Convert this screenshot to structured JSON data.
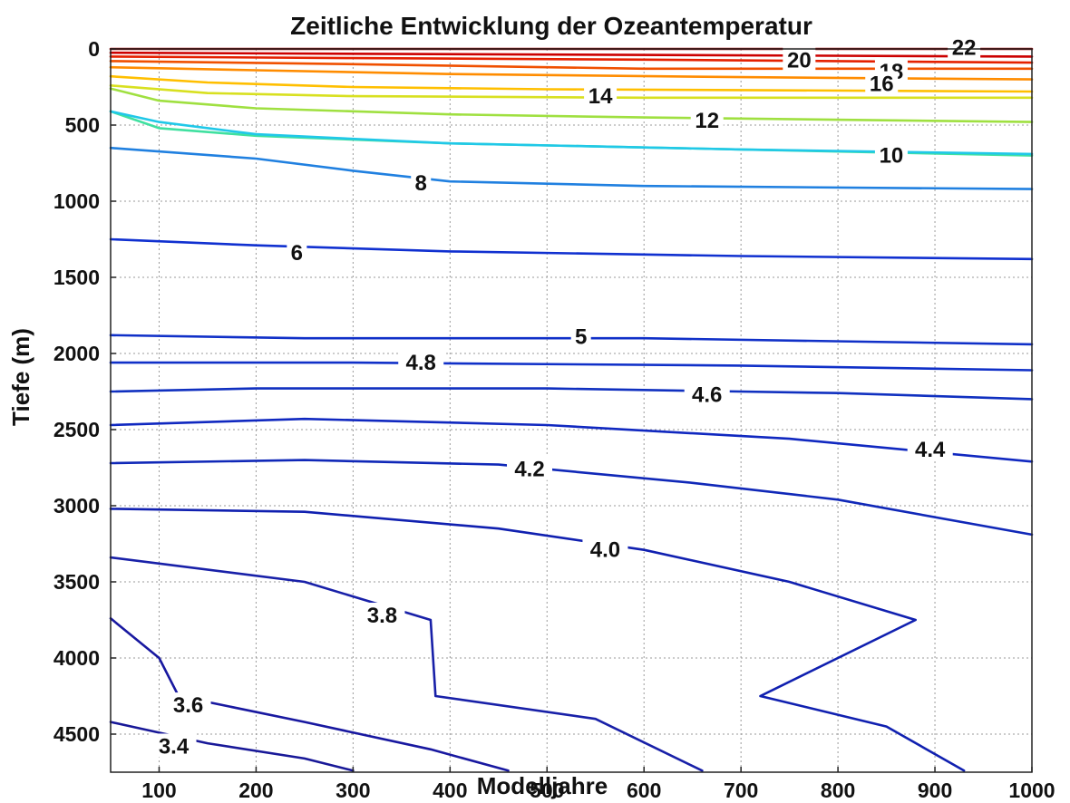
{
  "chart_data": {
    "type": "contour",
    "title": "Zeitliche Entwicklung der Ozeantemperatur",
    "xlabel": "Modelljahre",
    "ylabel": "Tiefe (m)",
    "xlim": [
      50,
      1000
    ],
    "ylim": [
      0,
      4750
    ],
    "y_reversed": true,
    "grid": true,
    "x_ticks": [
      100,
      200,
      300,
      400,
      500,
      600,
      700,
      800,
      900,
      1000
    ],
    "y_ticks": [
      0,
      500,
      1000,
      1500,
      2000,
      2500,
      3000,
      3500,
      4000,
      4500
    ],
    "contours": [
      {
        "level": "22",
        "color": "#a50000",
        "points": [
          [
            50,
            0
          ],
          [
            1000,
            0
          ]
        ],
        "label_at": [
          930,
          -10
        ]
      },
      {
        "level": "",
        "color": "#cc0000",
        "points": [
          [
            50,
            25
          ],
          [
            1000,
            50
          ]
        ],
        "label_at": null
      },
      {
        "level": "20",
        "color": "#e52000",
        "points": [
          [
            50,
            50
          ],
          [
            300,
            60
          ],
          [
            600,
            70
          ],
          [
            1000,
            90
          ]
        ],
        "label_at": [
          760,
          75
        ]
      },
      {
        "level": "",
        "color": "#f05000",
        "points": [
          [
            50,
            80
          ],
          [
            300,
            100
          ],
          [
            600,
            130
          ],
          [
            1000,
            130
          ]
        ],
        "label_at": null
      },
      {
        "level": "18",
        "color": "#ff8c00",
        "points": [
          [
            50,
            120
          ],
          [
            200,
            140
          ],
          [
            400,
            165
          ],
          [
            700,
            185
          ],
          [
            1000,
            200
          ]
        ],
        "label_at": [
          855,
          150
        ]
      },
      {
        "level": "16",
        "color": "#ffbf00",
        "points": [
          [
            50,
            180
          ],
          [
            150,
            220
          ],
          [
            300,
            250
          ],
          [
            500,
            265
          ],
          [
            700,
            270
          ],
          [
            1000,
            280
          ]
        ],
        "label_at": [
          845,
          230
        ]
      },
      {
        "level": "",
        "color": "#d8e020",
        "points": [
          [
            50,
            240
          ],
          [
            150,
            290
          ],
          [
            300,
            310
          ],
          [
            600,
            320
          ],
          [
            1000,
            320
          ]
        ],
        "label_at": null
      },
      {
        "level": "14",
        "color": "#9fe040",
        "points": [
          [
            50,
            260
          ],
          [
            100,
            340
          ],
          [
            200,
            390
          ],
          [
            400,
            430
          ],
          [
            600,
            450
          ],
          [
            1000,
            480
          ]
        ],
        "label_at": [
          555,
          310
        ]
      },
      {
        "level": "12",
        "color": "#40e0a0",
        "points": [
          [
            50,
            410
          ],
          [
            100,
            520
          ],
          [
            200,
            570
          ],
          [
            400,
            620
          ],
          [
            700,
            660
          ],
          [
            1000,
            700
          ]
        ],
        "label_at": [
          665,
          470
        ]
      },
      {
        "level": "10",
        "color": "#20c8e8",
        "points": [
          [
            50,
            410
          ],
          [
            100,
            480
          ],
          [
            200,
            560
          ],
          [
            400,
            620
          ],
          [
            700,
            660
          ],
          [
            1000,
            690
          ]
        ],
        "label_at": [
          855,
          700
        ]
      },
      {
        "level": "8",
        "color": "#2080e0",
        "points": [
          [
            50,
            650
          ],
          [
            200,
            720
          ],
          [
            300,
            800
          ],
          [
            400,
            870
          ],
          [
            600,
            900
          ],
          [
            1000,
            920
          ]
        ],
        "label_at": [
          370,
          880
        ]
      },
      {
        "level": "6",
        "color": "#1030d0",
        "points": [
          [
            50,
            1250
          ],
          [
            200,
            1290
          ],
          [
            400,
            1330
          ],
          [
            700,
            1360
          ],
          [
            1000,
            1380
          ]
        ],
        "label_at": [
          242,
          1340
        ]
      },
      {
        "level": "5",
        "color": "#1030c8",
        "points": [
          [
            50,
            1880
          ],
          [
            250,
            1900
          ],
          [
            600,
            1900
          ],
          [
            1000,
            1940
          ]
        ],
        "label_at": [
          535,
          1890
        ]
      },
      {
        "level": "4.8",
        "color": "#1030c8",
        "points": [
          [
            50,
            2060
          ],
          [
            300,
            2060
          ],
          [
            700,
            2080
          ],
          [
            1000,
            2110
          ]
        ],
        "label_at": [
          370,
          2060
        ]
      },
      {
        "level": "4.6",
        "color": "#1030c0",
        "points": [
          [
            50,
            2250
          ],
          [
            200,
            2230
          ],
          [
            500,
            2230
          ],
          [
            800,
            2260
          ],
          [
            1000,
            2300
          ]
        ],
        "label_at": [
          665,
          2270
        ]
      },
      {
        "level": "4.4",
        "color": "#1028c0",
        "points": [
          [
            50,
            2470
          ],
          [
            250,
            2430
          ],
          [
            500,
            2470
          ],
          [
            750,
            2560
          ],
          [
            1000,
            2710
          ]
        ],
        "label_at": [
          895,
          2630
        ]
      },
      {
        "level": "4.2",
        "color": "#1028b8",
        "points": [
          [
            50,
            2720
          ],
          [
            250,
            2700
          ],
          [
            450,
            2730
          ],
          [
            650,
            2850
          ],
          [
            800,
            2960
          ],
          [
            1000,
            3190
          ]
        ],
        "label_at": [
          482,
          2760
        ]
      },
      {
        "level": "4.0",
        "color": "#1020b0",
        "points": [
          [
            50,
            3020
          ],
          [
            250,
            3040
          ],
          [
            450,
            3150
          ],
          [
            600,
            3290
          ],
          [
            750,
            3500
          ],
          [
            880,
            3750
          ],
          [
            720,
            4250
          ],
          [
            850,
            4450
          ],
          [
            930,
            4740
          ]
        ],
        "label_at": [
          560,
          3290
        ]
      },
      {
        "level": "3.8",
        "color": "#1820a8",
        "points": [
          [
            50,
            3340
          ],
          [
            250,
            3500
          ],
          [
            380,
            3750
          ],
          [
            385,
            4250
          ],
          [
            550,
            4400
          ],
          [
            660,
            4740
          ]
        ],
        "label_at": [
          330,
          3720
        ]
      },
      {
        "level": "3.6",
        "color": "#1818a0",
        "points": [
          [
            50,
            3740
          ],
          [
            100,
            4000
          ],
          [
            120,
            4250
          ],
          [
            250,
            4420
          ],
          [
            380,
            4600
          ],
          [
            460,
            4740
          ]
        ],
        "label_at": [
          130,
          4310
        ]
      },
      {
        "level": "3.4",
        "color": "#181898",
        "points": [
          [
            50,
            4420
          ],
          [
            150,
            4560
          ],
          [
            250,
            4660
          ],
          [
            300,
            4740
          ]
        ],
        "label_at": [
          115,
          4580
        ]
      }
    ]
  }
}
